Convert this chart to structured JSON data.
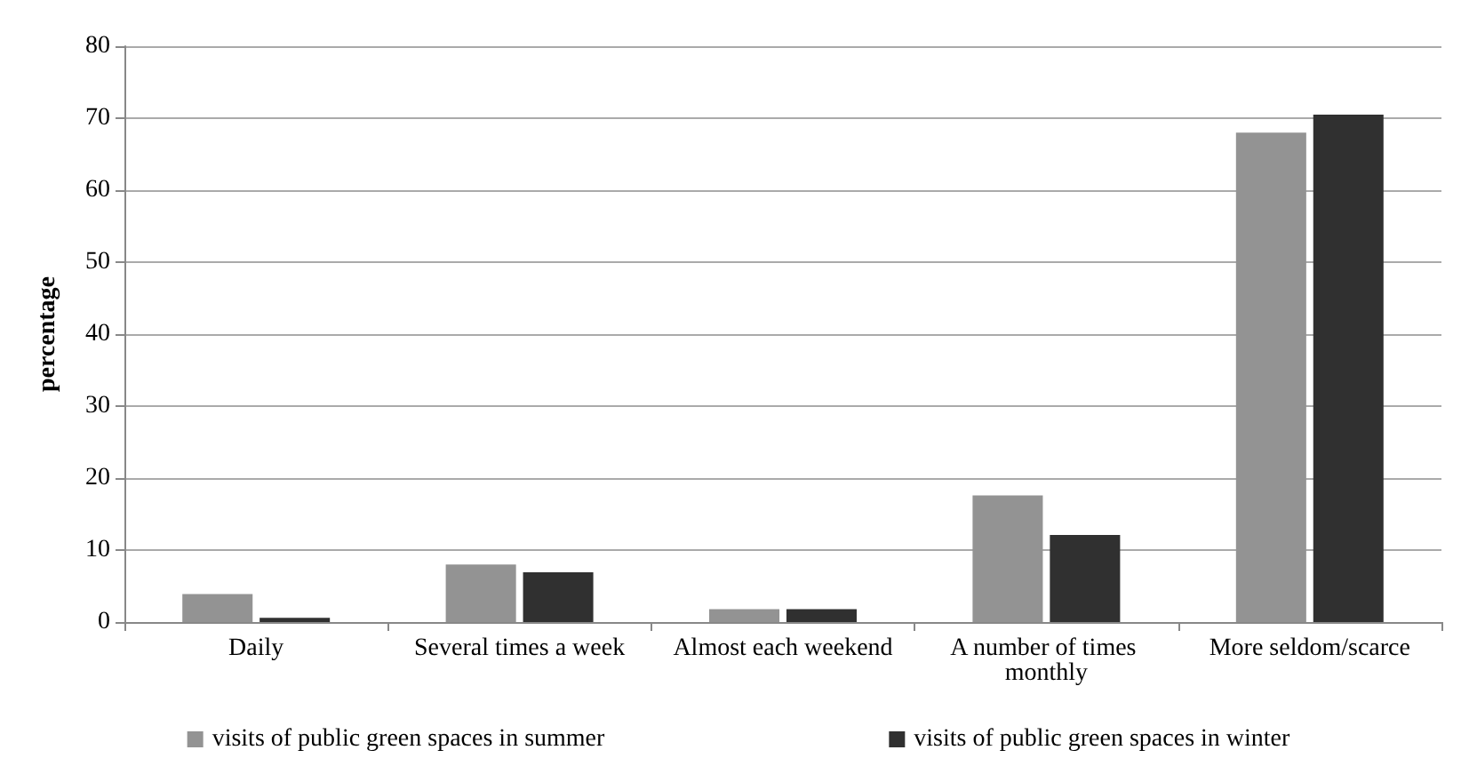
{
  "chart_data": {
    "type": "bar",
    "ylabel": "percentage",
    "categories": [
      "Daily",
      "Several times a week",
      "Almost each weekend",
      "A number of times monthly",
      "More seldom/scarce"
    ],
    "series": [
      {
        "name": "visits of public green spaces in summer",
        "color": "#939393",
        "values": [
          3.9,
          8.0,
          1.8,
          17.6,
          68.0
        ]
      },
      {
        "name": "visits of public green spaces in winter",
        "color": "#303030",
        "values": [
          0.6,
          6.9,
          1.8,
          12.1,
          70.5
        ]
      }
    ],
    "ylim": [
      0,
      80
    ],
    "yticks": [
      0,
      10,
      20,
      30,
      40,
      50,
      60,
      70,
      80
    ],
    "grid": "y",
    "legend": "bottom"
  }
}
